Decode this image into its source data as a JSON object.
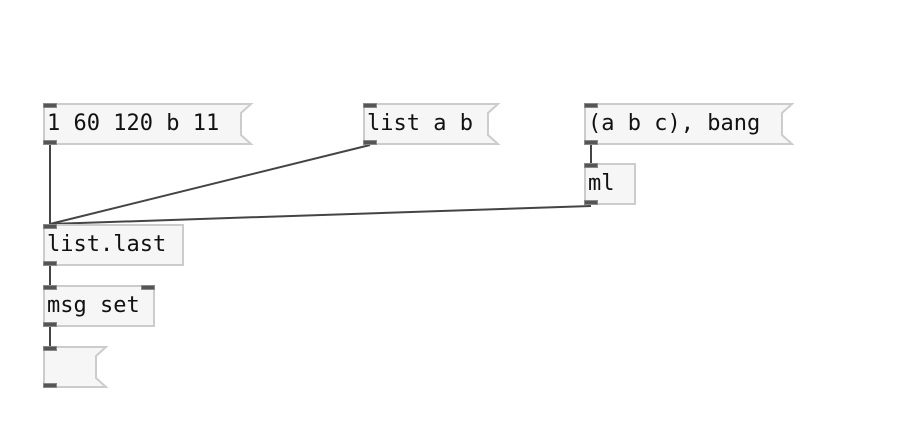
{
  "patch": {
    "messages": {
      "numbers": "1 60 120 b 11",
      "list_ab": "list a b",
      "abc_bang": "(a b c), bang",
      "empty": ""
    },
    "objects": {
      "ml": "ml",
      "list_last": "list.last",
      "msg_set": "msg set"
    }
  },
  "colors": {
    "wire": "#444444",
    "border": "#cccccc",
    "fill": "#f6f6f6"
  }
}
